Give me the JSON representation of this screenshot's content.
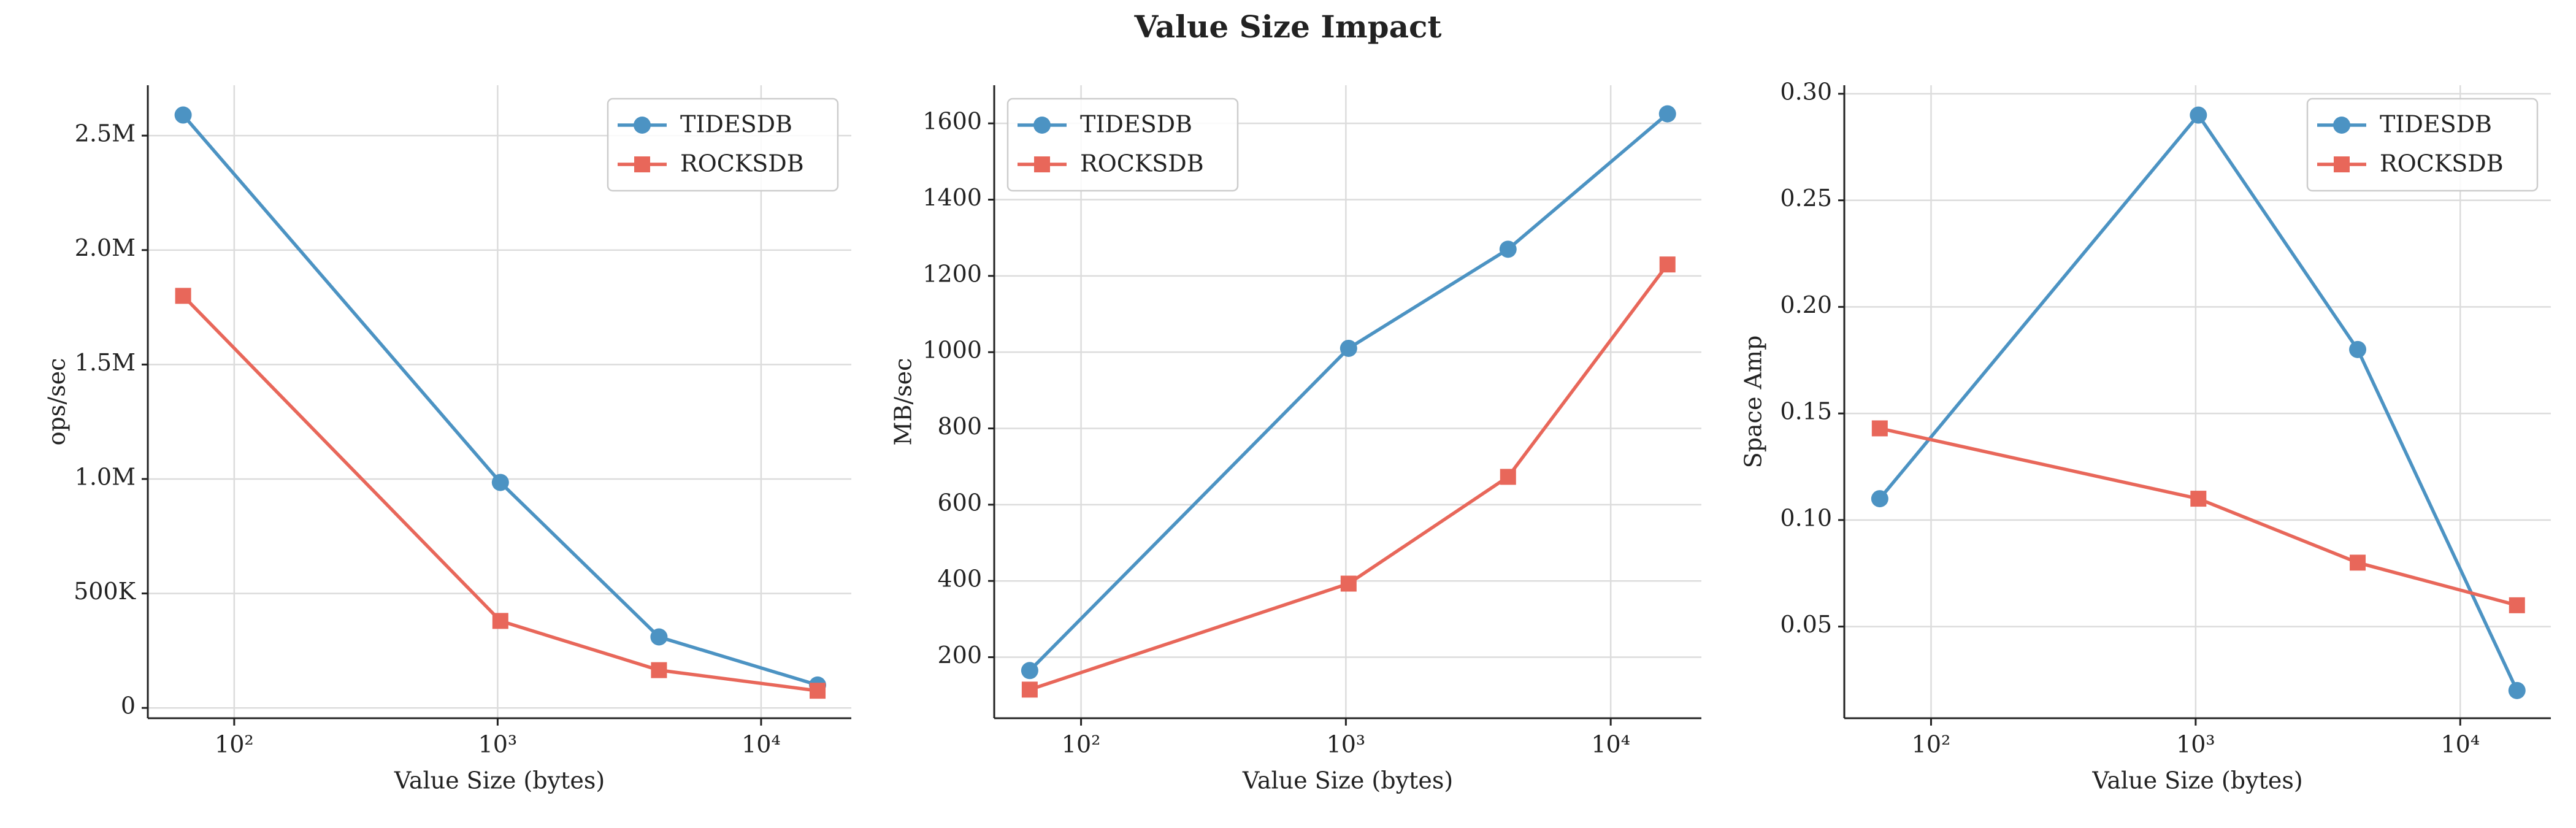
{
  "title": "Value Size Impact",
  "chart_data": [
    {
      "type": "line",
      "xlabel": "Value Size (bytes)",
      "ylabel": "ops/sec",
      "x": [
        64,
        1024,
        4096,
        16384
      ],
      "xscale": "log",
      "grid": true,
      "legend": "upper right",
      "xlim": [
        47,
        22000
      ],
      "xticks": [
        {
          "value": 100,
          "label": "10²"
        },
        {
          "value": 1000,
          "label": "10³"
        },
        {
          "value": 10000,
          "label": "10⁴"
        }
      ],
      "ylim": [
        -45000,
        2720000
      ],
      "yticks": [
        0,
        {
          "value": 500000,
          "label": "500K"
        },
        {
          "value": 1000000,
          "label": "1.0M"
        },
        {
          "value": 1500000,
          "label": "1.5M"
        },
        {
          "value": 2000000,
          "label": "2.0M"
        },
        {
          "value": 2500000,
          "label": "2.5M"
        }
      ],
      "series": [
        {
          "name": "TIDESDB",
          "color": "#4c93c3",
          "marker": "circle",
          "values": [
            2590000,
            985000,
            310000,
            100000
          ]
        },
        {
          "name": "ROCKSDB",
          "color": "#e8675a",
          "marker": "square",
          "values": [
            1800000,
            380000,
            165000,
            75000
          ]
        }
      ]
    },
    {
      "type": "line",
      "xlabel": "Value Size (bytes)",
      "ylabel": "MB/sec",
      "x": [
        64,
        1024,
        4096,
        16384
      ],
      "xscale": "log",
      "grid": true,
      "legend": "upper left",
      "xlim": [
        47,
        22000
      ],
      "xticks": [
        {
          "value": 100,
          "label": "10²"
        },
        {
          "value": 1000,
          "label": "10³"
        },
        {
          "value": 10000,
          "label": "10⁴"
        }
      ],
      "ylim": [
        40,
        1700
      ],
      "yticks": [
        200,
        400,
        600,
        800,
        1000,
        1200,
        1400,
        1600
      ],
      "series": [
        {
          "name": "TIDESDB",
          "color": "#4c93c3",
          "marker": "circle",
          "values": [
            165,
            1010,
            1270,
            1625
          ]
        },
        {
          "name": "ROCKSDB",
          "color": "#e8675a",
          "marker": "square",
          "values": [
            115,
            393,
            673,
            1230
          ]
        }
      ]
    },
    {
      "type": "line",
      "xlabel": "Value Size (bytes)",
      "ylabel": "Space Amp",
      "x": [
        64,
        1024,
        4096,
        16384
      ],
      "xscale": "log",
      "grid": true,
      "legend": "upper right",
      "xlim": [
        47,
        22000
      ],
      "xticks": [
        {
          "value": 100,
          "label": "10²"
        },
        {
          "value": 1000,
          "label": "10³"
        },
        {
          "value": 10000,
          "label": "10⁴"
        }
      ],
      "ylim": [
        0.007,
        0.304
      ],
      "yticks": [
        0.05,
        {
          "value": 0.1,
          "label": "0.10"
        },
        0.15,
        {
          "value": 0.2,
          "label": "0.20"
        },
        0.25,
        {
          "value": 0.3,
          "label": "0.30"
        }
      ],
      "series": [
        {
          "name": "TIDESDB",
          "color": "#4c93c3",
          "marker": "circle",
          "values": [
            0.11,
            0.29,
            0.18,
            0.02
          ]
        },
        {
          "name": "ROCKSDB",
          "color": "#e8675a",
          "marker": "square",
          "values": [
            0.143,
            0.11,
            0.08,
            0.06
          ]
        }
      ]
    }
  ]
}
